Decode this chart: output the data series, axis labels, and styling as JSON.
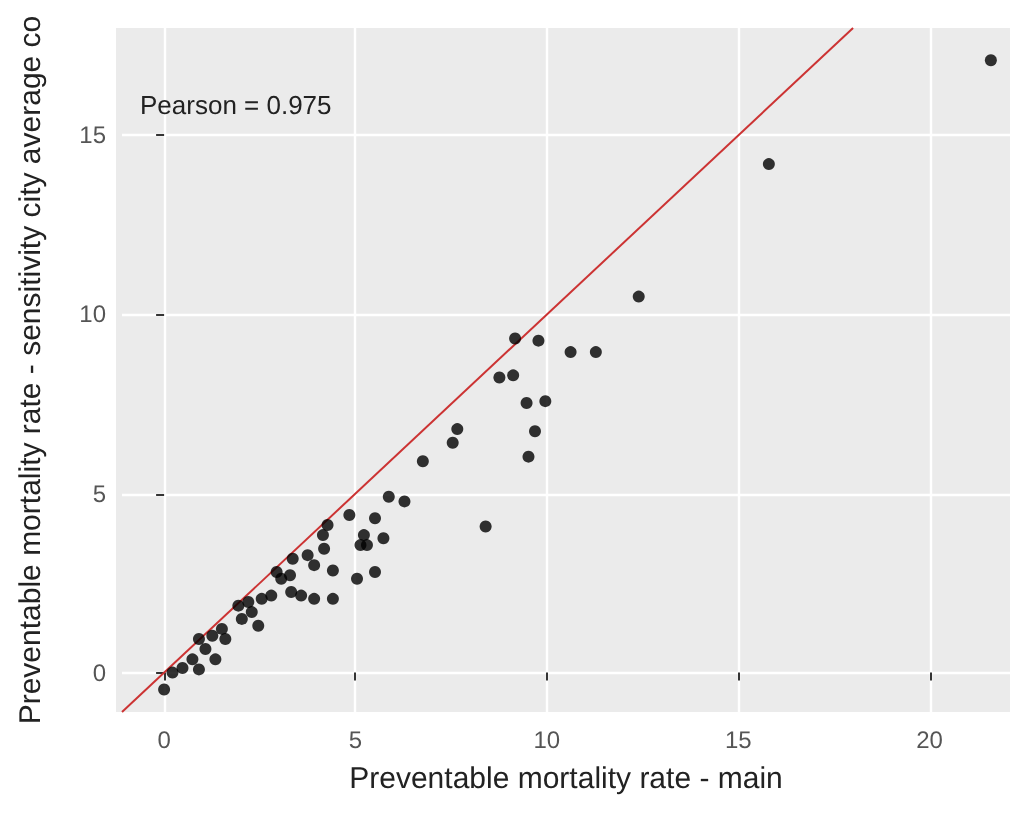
{
  "chart_data": {
    "type": "scatter",
    "xlabel": "Preventable mortality rate - main",
    "ylabel": "Preventable mortality rate - sensitivity city average co",
    "annotations": [
      "Pearson = 0.975"
    ],
    "xlim": [
      -1.1,
      22.1
    ],
    "ylim": [
      -1.1,
      18
    ],
    "xticks": [
      0,
      5,
      10,
      15,
      20
    ],
    "yticks": [
      0,
      5,
      10,
      15
    ],
    "grid": true,
    "marker": "circle",
    "series": [
      {
        "color": "#000000",
        "x": [
          0,
          0.22,
          0.48,
          0.74,
          0.91,
          0.91,
          1.08,
          1.34,
          1.26,
          1.51,
          1.6,
          1.94,
          2.03,
          2.2,
          2.29,
          2.46,
          2.55,
          2.8,
          2.94,
          3.06,
          3.29,
          3.32,
          3.36,
          3.58,
          3.75,
          3.92,
          3.92,
          4.15,
          4.27,
          4.18,
          4.41,
          4.41,
          4.84,
          5.04,
          5.13,
          5.22,
          5.3,
          5.51,
          5.51,
          5.73,
          5.87,
          6.28,
          6.76,
          7.54,
          7.66,
          8.4,
          9.52,
          9.69,
          21.6,
          15.8,
          12.4,
          9.17,
          9.78,
          8.76,
          9.12,
          10.62,
          11.28,
          9.47,
          9.96
        ],
        "values": [
          -0.47,
          0,
          0.13,
          0.37,
          0.94,
          0.09,
          0.66,
          0.37,
          1.03,
          1.22,
          0.94,
          1.87,
          1.5,
          1.97,
          1.69,
          1.31,
          2.06,
          2.15,
          2.81,
          2.62,
          2.72,
          2.25,
          3.18,
          2.15,
          3.28,
          3.0,
          2.06,
          3.84,
          4.12,
          3.46,
          2.06,
          2.85,
          4.4,
          2.62,
          3.56,
          3.84,
          3.56,
          2.81,
          4.31,
          3.75,
          4.91,
          4.78,
          5.9,
          6.42,
          6.8,
          4.08,
          6.03,
          6.74,
          17.1,
          14.2,
          10.5,
          9.33,
          9.27,
          8.24,
          8.3,
          8.95,
          8.95,
          7.53,
          7.58
        ]
      },
      {
        "type": "line",
        "color": "#cc3333",
        "x": [
          -1.1,
          18
        ],
        "values": [
          -1.1,
          18
        ],
        "marker": "none"
      }
    ]
  }
}
